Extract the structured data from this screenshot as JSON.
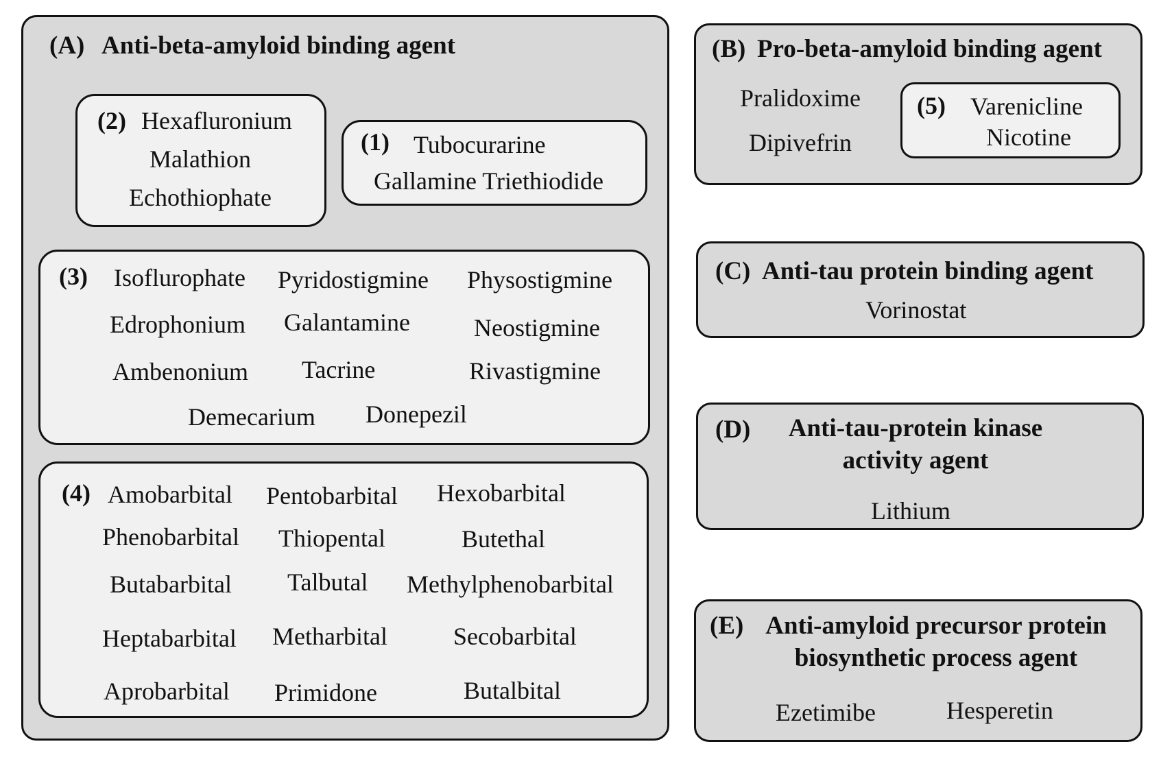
{
  "panel_a": {
    "label": "(A)",
    "title": "Anti-beta-amyloid binding agent",
    "group1": {
      "label": "(1)",
      "drugs": [
        "Tubocurarine",
        "Gallamine Triethiodide"
      ]
    },
    "group2": {
      "label": "(2)",
      "drugs": [
        "Hexafluronium",
        "Malathion",
        "Echothiophate"
      ]
    },
    "group3": {
      "label": "(3)",
      "drugs": [
        "Isoflurophate",
        "Pyridostigmine",
        "Physostigmine",
        "Edrophonium",
        "Galantamine",
        "Neostigmine",
        "Ambenonium",
        "Tacrine",
        "Rivastigmine",
        "Demecarium",
        "Donepezil"
      ]
    },
    "group4": {
      "label": "(4)",
      "drugs": [
        "Amobarbital",
        "Pentobarbital",
        "Hexobarbital",
        "Phenobarbital",
        "Thiopental",
        "Butethal",
        "Butabarbital",
        "Talbutal",
        "Methylphenobarbital",
        "Heptabarbital",
        "Metharbital",
        "Secobarbital",
        "Aprobarbital",
        "Primidone",
        "Butalbital"
      ]
    }
  },
  "panel_b": {
    "label": "(B)",
    "title": "Pro-beta-amyloid binding agent",
    "drugs": [
      "Pralidoxime",
      "Dipivefrin"
    ],
    "group5": {
      "label": "(5)",
      "drugs": [
        "Varenicline",
        "Nicotine"
      ]
    }
  },
  "panel_c": {
    "label": "(C)",
    "title": "Anti-tau protein binding agent",
    "drugs": [
      "Vorinostat"
    ]
  },
  "panel_d": {
    "label": "(D)",
    "title_line1": "Anti-tau-protein kinase",
    "title_line2": "activity agent",
    "drugs": [
      "Lithium"
    ]
  },
  "panel_e": {
    "label": "(E)",
    "title_line1": "Anti-amyloid precursor protein",
    "title_line2": "biosynthetic process agent",
    "drugs": [
      "Ezetimibe",
      "Hesperetin"
    ]
  }
}
